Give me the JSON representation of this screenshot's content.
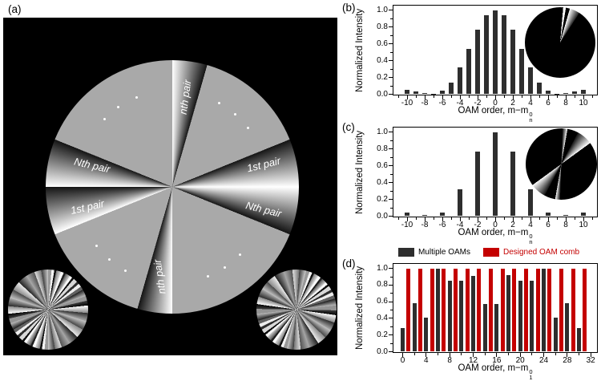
{
  "panels": {
    "a": {
      "label": "(a)",
      "mask": {
        "labels": [
          {
            "position": "top",
            "text": "nth pair"
          },
          {
            "position": "right-upper",
            "text": "1st pair"
          },
          {
            "position": "right-lower",
            "text": "Nth pair"
          },
          {
            "position": "left-upper",
            "text": "Nth pair"
          },
          {
            "position": "left-lower",
            "text": "1st pair"
          },
          {
            "position": "bottom",
            "text": "nth pair"
          }
        ]
      }
    },
    "b": {
      "label": "(b)"
    },
    "c": {
      "label": "(c)"
    },
    "d": {
      "label": "(d)"
    }
  },
  "colors": {
    "bar_dark": "#2e2e2e",
    "bar_red": "#c40000",
    "mask_gray": "#a9a9a9",
    "mask_background": "#000000"
  },
  "chart_data": [
    {
      "panel": "b",
      "type": "bar",
      "x": [
        -10,
        -9,
        -8,
        -7,
        -6,
        -5,
        -4,
        -3,
        -2,
        -1,
        0,
        1,
        2,
        3,
        4,
        5,
        6,
        7,
        8,
        9,
        10
      ],
      "values": [
        0.05,
        0.035,
        0.012,
        0.008,
        0.045,
        0.14,
        0.32,
        0.54,
        0.77,
        0.94,
        1.0,
        0.94,
        0.77,
        0.54,
        0.32,
        0.14,
        0.045,
        0.008,
        0.012,
        0.035,
        0.05
      ],
      "bar_color": "#2e2e2e",
      "title": "",
      "ylabel": "Normalized Intensity",
      "xlabel_main": "OAM order, m−m",
      "xlabel_sup": "0",
      "xlabel_sub": "n",
      "xlim": [
        -11.5,
        11.5
      ],
      "ylim": [
        0,
        1.05
      ],
      "xticks": [
        -10,
        -8,
        -6,
        -4,
        -2,
        0,
        2,
        4,
        6,
        8,
        10
      ],
      "minor_x_step": 1,
      "yticks": [
        0.0,
        0.2,
        0.4,
        0.6,
        0.8,
        1.0
      ],
      "grid": false,
      "inset": "oam-comb-pie"
    },
    {
      "panel": "c",
      "type": "bar",
      "x": [
        -10,
        -9,
        -8,
        -7,
        -6,
        -5,
        -4,
        -3,
        -2,
        -1,
        0,
        1,
        2,
        3,
        4,
        5,
        6,
        7,
        8,
        9,
        10
      ],
      "values": [
        0.045,
        0,
        0.012,
        0,
        0.04,
        0,
        0.32,
        0,
        0.77,
        0,
        1.0,
        0,
        0.77,
        0,
        0.32,
        0,
        0.04,
        0,
        0.012,
        0,
        0.045
      ],
      "bar_color": "#2e2e2e",
      "title": "",
      "ylabel": "Normalized Intensity",
      "xlabel_main": "OAM order, m−m",
      "xlabel_sup": "0",
      "xlabel_sub": "n",
      "xlim": [
        -11.5,
        11.5
      ],
      "ylim": [
        0,
        1.05
      ],
      "xticks": [
        -10,
        -8,
        -6,
        -4,
        -2,
        0,
        2,
        4,
        6,
        8,
        10
      ],
      "minor_x_step": 1,
      "yticks": [
        0.0,
        0.2,
        0.4,
        0.6,
        0.8,
        1.0
      ],
      "grid": false,
      "inset": "oam-comb-pie"
    },
    {
      "panel": "d",
      "type": "bar",
      "series": [
        {
          "name": "Multiple OAMs",
          "color": "#2e2e2e",
          "x": [
            0,
            2,
            4,
            6,
            8,
            10,
            12,
            14,
            16,
            18,
            20,
            22,
            24,
            26,
            28,
            30
          ],
          "values": [
            0.28,
            0.58,
            0.41,
            1.0,
            0.85,
            0.85,
            0.91,
            0.57,
            0.57,
            0.92,
            0.85,
            0.85,
            1.0,
            0.41,
            0.58,
            0.28
          ]
        },
        {
          "name": "Designed OAM comb",
          "color": "#c40000",
          "x": [
            1,
            3,
            5,
            7,
            9,
            11,
            13,
            15,
            17,
            19,
            21,
            23,
            25,
            27,
            29,
            31
          ],
          "values": [
            1.0,
            1.0,
            1.0,
            1.0,
            1.0,
            1.0,
            1.0,
            1.0,
            1.0,
            1.0,
            1.0,
            1.0,
            1.0,
            1.0,
            1.0,
            1.0
          ]
        }
      ],
      "title": "",
      "ylabel": "Normalized Intensity",
      "xlabel_main": "OAM order, m−m",
      "xlabel_sup": "0",
      "xlabel_sub": "1",
      "xlim": [
        -1.5,
        33
      ],
      "ylim": [
        0,
        1.05
      ],
      "xticks": [
        0,
        4,
        8,
        12,
        16,
        20,
        24,
        28,
        32
      ],
      "minor_x_step": 2,
      "yticks": [
        0.0,
        0.2,
        0.4,
        0.6,
        0.8,
        1.0
      ],
      "grid": false,
      "legend_position": "top"
    }
  ]
}
